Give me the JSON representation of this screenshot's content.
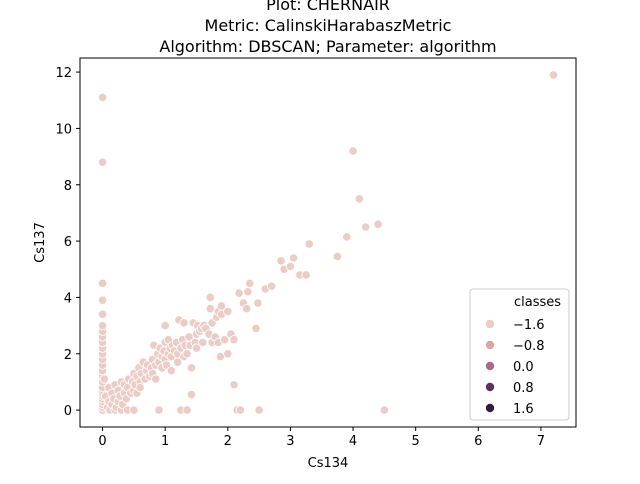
{
  "chart_data": {
    "type": "scatter",
    "title_lines": [
      "Plot: CHERNAIR",
      "Metric: CalinskiHarabaszMetric",
      "Algorithm: DBSCAN; Parameter: algorithm"
    ],
    "xlabel": "Cs134",
    "ylabel": "Cs137",
    "xlim": [
      -0.36,
      7.56
    ],
    "ylim": [
      -0.6,
      12.5
    ],
    "xticks": [
      0,
      1,
      2,
      3,
      4,
      5,
      6,
      7
    ],
    "yticks": [
      0,
      2,
      4,
      6,
      8,
      10,
      12
    ],
    "grid": false,
    "legend": {
      "title": "classes",
      "placement": "lower-right",
      "entries": [
        {
          "label": "−1.6",
          "color": "#ebcdc8"
        },
        {
          "label": "−0.8",
          "color": "#d9a6a7"
        },
        {
          "label": "0.0",
          "color": "#a86a8d"
        },
        {
          "label": "0.8",
          "color": "#5e305e"
        },
        {
          "label": "1.6",
          "color": "#2d1e3e"
        }
      ]
    },
    "point_color": "#ebcdc8",
    "point_edge": "#ffffff",
    "series": [
      {
        "class": -1.6,
        "points": [
          [
            0,
            0
          ],
          [
            0,
            0.1
          ],
          [
            0,
            0.2
          ],
          [
            0,
            0.3
          ],
          [
            0,
            0.4
          ],
          [
            0,
            0.5
          ],
          [
            0,
            0.6
          ],
          [
            0,
            0.7
          ],
          [
            0,
            0.8
          ],
          [
            0,
            1.0
          ],
          [
            0,
            1.2
          ],
          [
            0,
            1.4
          ],
          [
            0,
            1.6
          ],
          [
            0,
            1.8
          ],
          [
            0,
            2.0
          ],
          [
            0,
            2.2
          ],
          [
            0,
            2.4
          ],
          [
            0,
            2.6
          ],
          [
            0,
            2.8
          ],
          [
            0,
            3.0
          ],
          [
            0,
            3.4
          ],
          [
            0,
            3.9
          ],
          [
            0,
            4.5
          ],
          [
            0,
            8.8
          ],
          [
            0,
            11.1
          ],
          [
            0.03,
            1.1
          ],
          [
            0.05,
            0.5
          ],
          [
            0.08,
            0.1
          ],
          [
            0.1,
            0.3
          ],
          [
            0.1,
            0.8
          ],
          [
            0.12,
            0
          ],
          [
            0.15,
            0.2
          ],
          [
            0.15,
            0.6
          ],
          [
            0.18,
            0.4
          ],
          [
            0.2,
            0
          ],
          [
            0.2,
            0.9
          ],
          [
            0.22,
            0.1
          ],
          [
            0.25,
            0.3
          ],
          [
            0.25,
            0.7
          ],
          [
            0.28,
            0.5
          ],
          [
            0.3,
            0
          ],
          [
            0.3,
            1.0
          ],
          [
            0.32,
            0.2
          ],
          [
            0.35,
            0.6
          ],
          [
            0.35,
            0.9
          ],
          [
            0.38,
            0.4
          ],
          [
            0.4,
            0
          ],
          [
            0.4,
            0.8
          ],
          [
            0.42,
            1.1
          ],
          [
            0.45,
            0.6
          ],
          [
            0.48,
            1.0
          ],
          [
            0.5,
            0
          ],
          [
            0.5,
            0.7
          ],
          [
            0.5,
            1.3
          ],
          [
            0.52,
            0.9
          ],
          [
            0.55,
            1.2
          ],
          [
            0.55,
            0.6
          ],
          [
            0.58,
            1.5
          ],
          [
            0.6,
            1.0
          ],
          [
            0.6,
            0.8
          ],
          [
            0.62,
            1.3
          ],
          [
            0.65,
            1.7
          ],
          [
            0.68,
            1.1
          ],
          [
            0.7,
            1.4
          ],
          [
            0.72,
            1.6
          ],
          [
            0.75,
            1.2
          ],
          [
            0.78,
            1.5
          ],
          [
            0.8,
            1.8
          ],
          [
            0.8,
            1.3
          ],
          [
            0.82,
            2.3
          ],
          [
            0.85,
            1.6
          ],
          [
            0.85,
            1.1
          ],
          [
            0.88,
            2.0
          ],
          [
            0.9,
            1.7
          ],
          [
            0.9,
            0
          ],
          [
            0.92,
            2.2
          ],
          [
            0.95,
            1.9
          ],
          [
            0.95,
            1.5
          ],
          [
            0.98,
            2.1
          ],
          [
            1.0,
            1.8
          ],
          [
            1.0,
            2.4
          ],
          [
            1.0,
            3.0
          ],
          [
            1.02,
            1.6
          ],
          [
            1.05,
            2.0
          ],
          [
            1.05,
            2.5
          ],
          [
            1.08,
            2.2
          ],
          [
            1.1,
            1.9
          ],
          [
            1.1,
            1.4
          ],
          [
            1.12,
            2.3
          ],
          [
            1.15,
            2.1
          ],
          [
            1.18,
            2.4
          ],
          [
            1.2,
            2.0
          ],
          [
            1.2,
            1.7
          ],
          [
            1.22,
            3.2
          ],
          [
            1.25,
            2.2
          ],
          [
            1.25,
            0
          ],
          [
            1.28,
            2.5
          ],
          [
            1.3,
            1.9
          ],
          [
            1.3,
            3.1
          ],
          [
            1.32,
            2.3
          ],
          [
            1.35,
            0
          ],
          [
            1.35,
            2.0
          ],
          [
            1.38,
            2.6
          ],
          [
            1.4,
            2.3
          ],
          [
            1.42,
            1.5
          ],
          [
            1.42,
            0.55
          ],
          [
            1.45,
            3.1
          ],
          [
            1.48,
            2.4
          ],
          [
            1.5,
            2.7
          ],
          [
            1.5,
            2.2
          ],
          [
            1.52,
            3.0
          ],
          [
            1.55,
            2.8
          ],
          [
            1.58,
            2.9
          ],
          [
            1.6,
            2.4
          ],
          [
            1.62,
            3.0
          ],
          [
            1.65,
            2.9
          ],
          [
            1.7,
            2.7
          ],
          [
            1.72,
            3.6
          ],
          [
            1.72,
            4.0
          ],
          [
            1.75,
            3.1
          ],
          [
            1.75,
            2.4
          ],
          [
            1.8,
            2.6
          ],
          [
            1.82,
            3.3
          ],
          [
            1.85,
            3.5
          ],
          [
            1.85,
            2.4
          ],
          [
            1.88,
            1.9
          ],
          [
            1.9,
            3.7
          ],
          [
            1.9,
            3.4
          ],
          [
            1.95,
            2.5
          ],
          [
            2.0,
            3.5
          ],
          [
            2.0,
            2.0
          ],
          [
            2.05,
            2.7
          ],
          [
            2.1,
            2.5
          ],
          [
            2.1,
            0.9
          ],
          [
            2.15,
            0
          ],
          [
            2.18,
            4.15
          ],
          [
            2.2,
            0
          ],
          [
            2.25,
            3.8
          ],
          [
            2.3,
            3.6
          ],
          [
            2.32,
            4.2
          ],
          [
            2.35,
            4.5
          ],
          [
            2.45,
            2.9
          ],
          [
            2.48,
            3.8
          ],
          [
            2.5,
            0
          ],
          [
            2.6,
            4.3
          ],
          [
            2.7,
            4.4
          ],
          [
            2.85,
            5.3
          ],
          [
            2.9,
            5.0
          ],
          [
            3.0,
            5.1
          ],
          [
            3.05,
            5.4
          ],
          [
            3.15,
            4.8
          ],
          [
            3.25,
            4.8
          ],
          [
            3.3,
            5.9
          ],
          [
            3.75,
            5.45
          ],
          [
            3.9,
            6.15
          ],
          [
            4.0,
            9.2
          ],
          [
            4.1,
            7.5
          ],
          [
            4.2,
            6.5
          ],
          [
            4.4,
            6.6
          ],
          [
            4.5,
            0
          ],
          [
            7.2,
            11.9
          ]
        ]
      }
    ]
  }
}
